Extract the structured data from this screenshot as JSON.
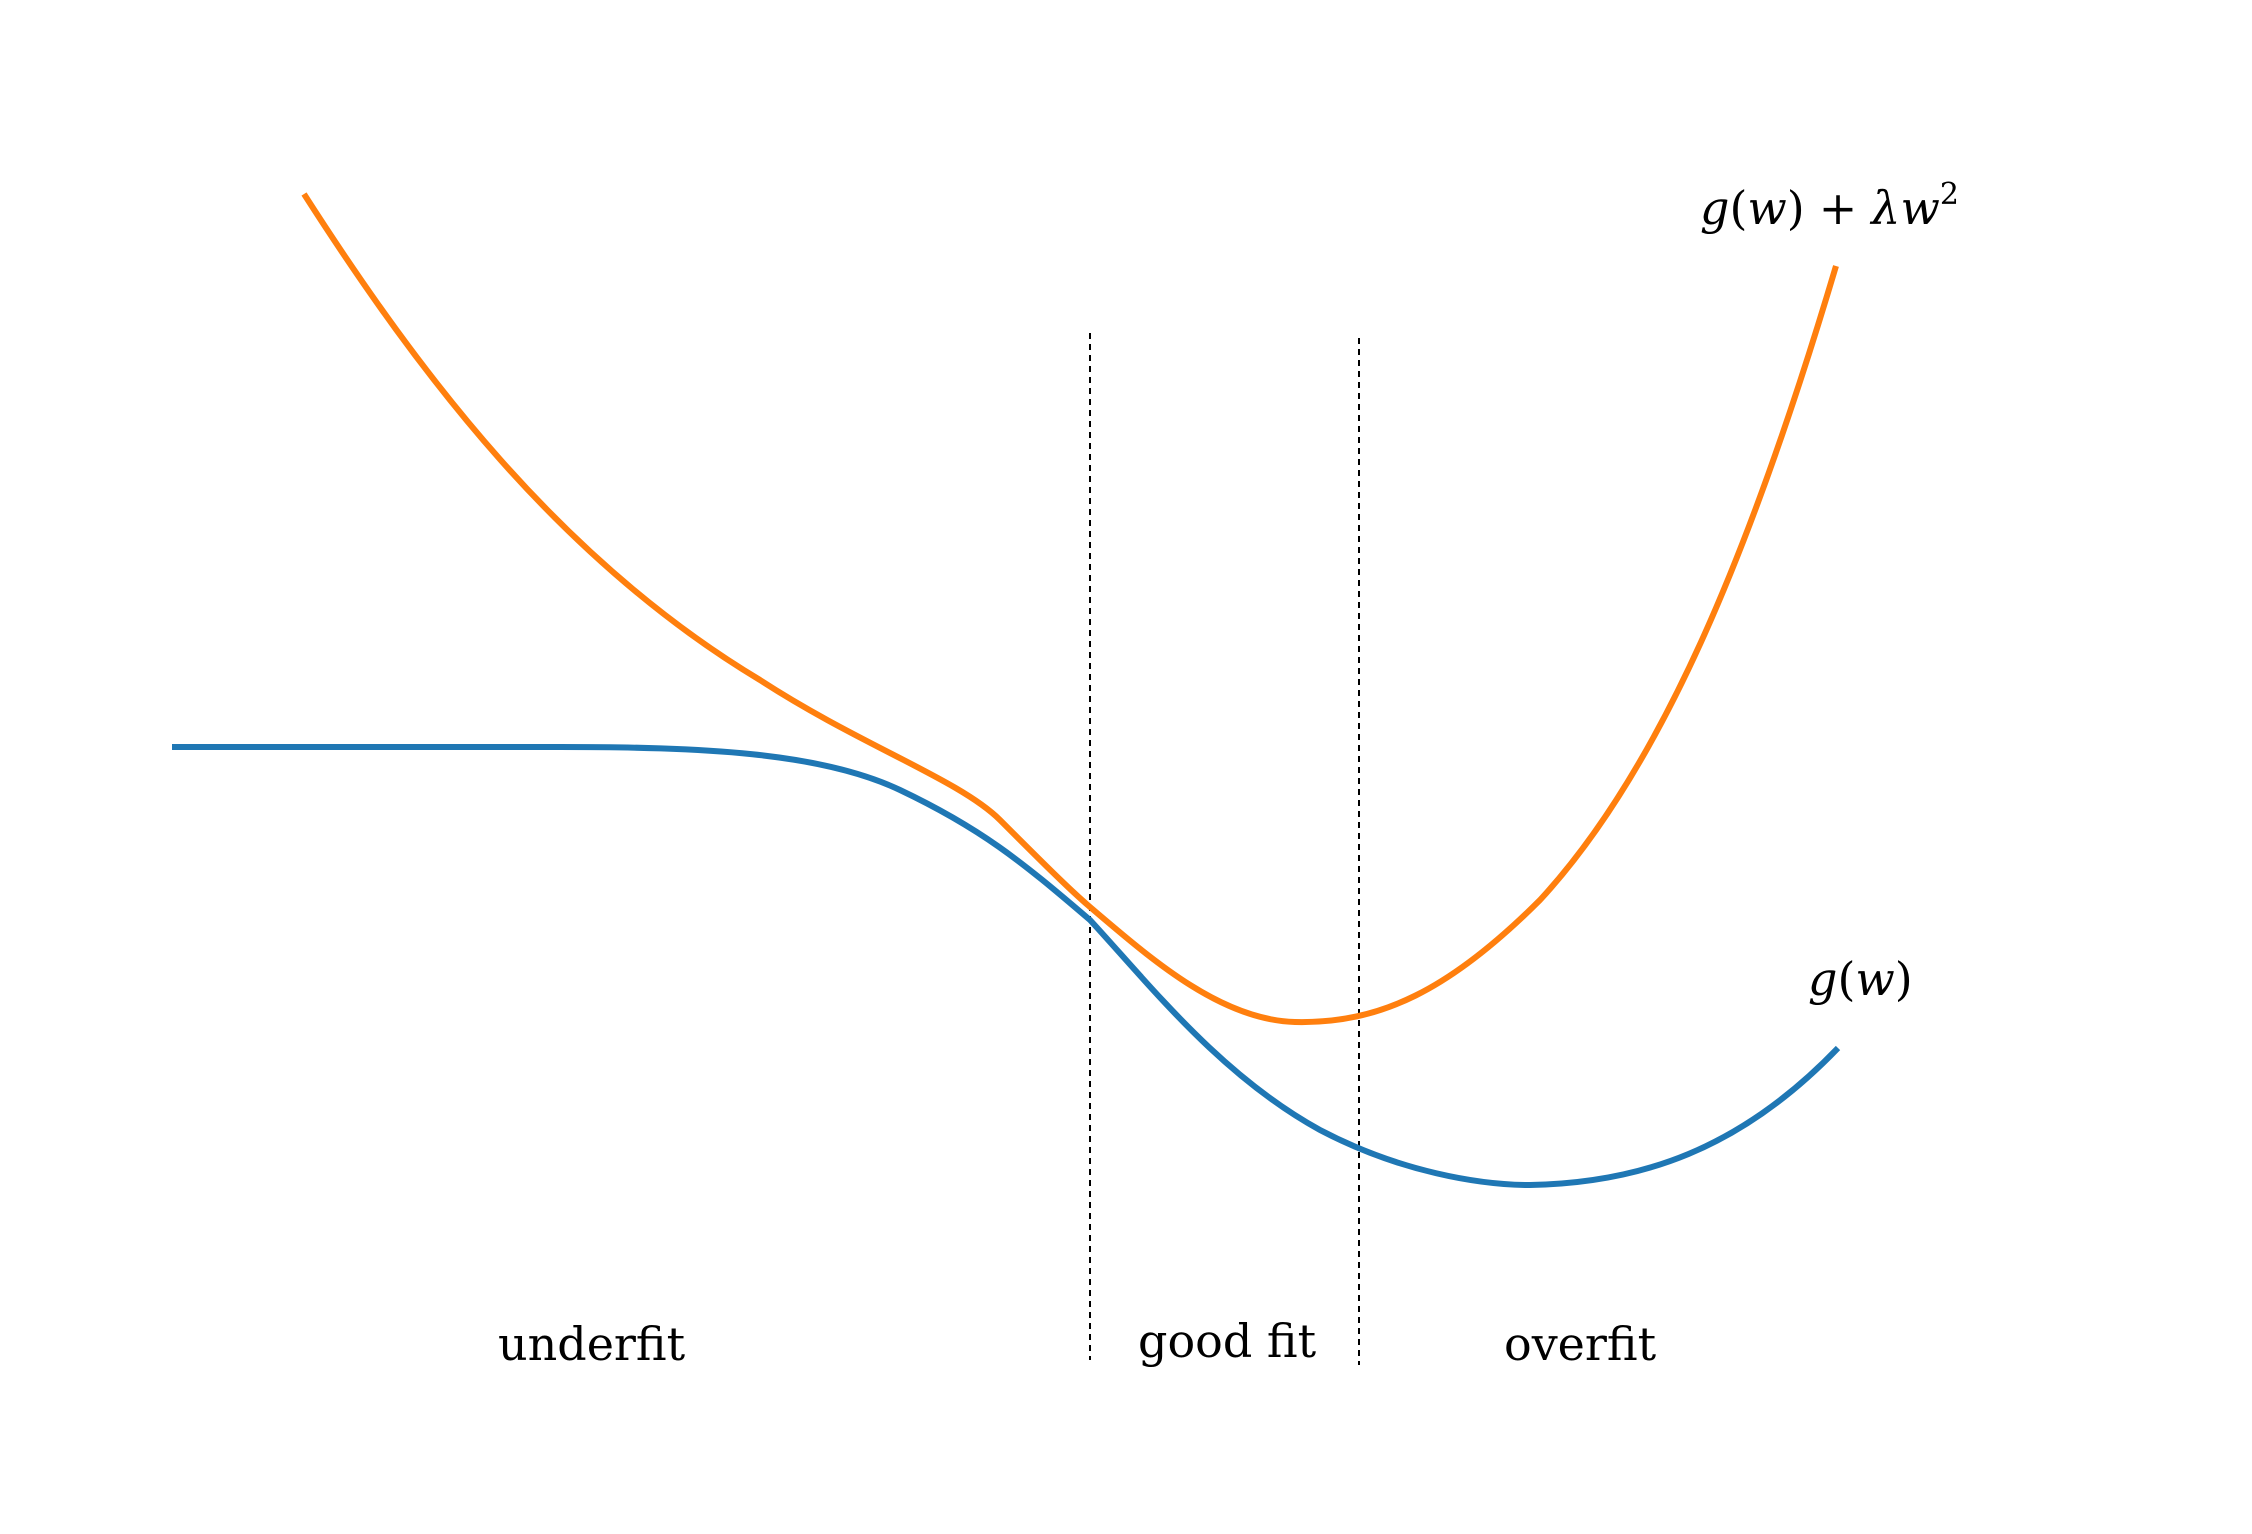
{
  "regions": {
    "underfit": "underfit",
    "good_fit": "good fit",
    "overfit": "overfit"
  },
  "labels": {
    "regularized": {
      "g": "g",
      "open": "(",
      "w": "w",
      "close": ")",
      "plus": "+",
      "lambda": "λ",
      "w2": "w",
      "sup": "2"
    },
    "base": {
      "g": "g",
      "open": "(",
      "w": "w",
      "close": ")"
    }
  },
  "colors": {
    "regularized": "#ff7f0e",
    "base": "#1f77b4",
    "divider": "#000000"
  }
}
